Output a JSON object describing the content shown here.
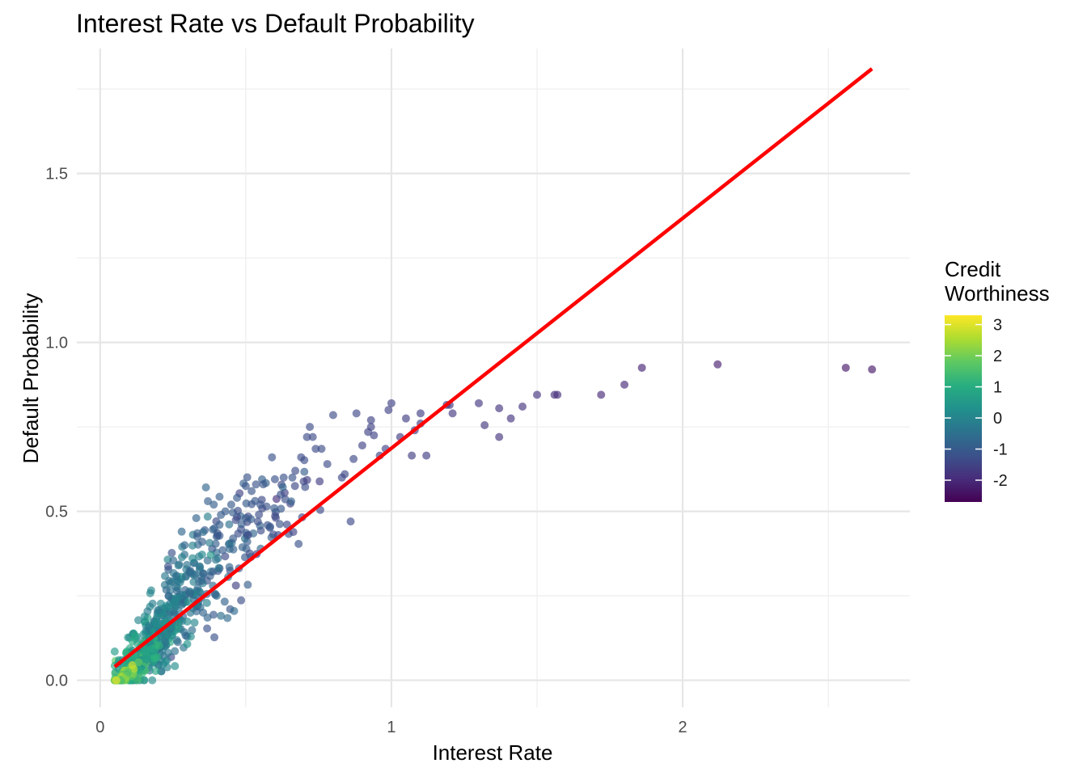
{
  "chart_data": {
    "type": "scatter",
    "title": "Interest Rate vs Default Probability",
    "xlabel": "Interest Rate",
    "ylabel": "Default Probability",
    "xlim": [
      -0.08,
      2.78
    ],
    "ylim": [
      -0.08,
      1.87
    ],
    "x_ticks": [
      0,
      1,
      2
    ],
    "x_tick_labels": [
      "0",
      "1",
      "2"
    ],
    "y_ticks": [
      0.0,
      0.5,
      1.0,
      1.5
    ],
    "y_tick_labels": [
      "0.0",
      "0.5",
      "1.0",
      "1.5"
    ],
    "grid": true,
    "legend": {
      "title_lines": [
        "Credit",
        "Worthiness"
      ],
      "placement": "right",
      "type": "colorbar",
      "range": [
        -2.7,
        3.3
      ],
      "ticks": [
        3,
        2,
        1,
        0,
        -1,
        -2
      ],
      "tick_labels": [
        "3",
        "2",
        "1",
        "0",
        "-1",
        "-2"
      ]
    },
    "colors": {
      "fit_line": "#ff0000",
      "viridis": [
        "#440154",
        "#472d7b",
        "#3b528b",
        "#2c728e",
        "#21918c",
        "#28ae80",
        "#5ec962",
        "#addc30",
        "#fde725"
      ]
    },
    "fit_line": {
      "x": [
        0.05,
        2.65
      ],
      "y": [
        0.04,
        1.81
      ]
    },
    "series": [
      {
        "points": [
          [
            2.65,
            0.92,
            -2.3
          ],
          [
            2.56,
            0.925,
            -2.3
          ],
          [
            2.12,
            0.935,
            -2.2
          ],
          [
            1.86,
            0.925,
            -2.1
          ],
          [
            1.8,
            0.875,
            -2.0
          ],
          [
            1.72,
            0.845,
            -2.0
          ],
          [
            1.57,
            0.845,
            -1.9
          ],
          [
            1.56,
            0.845,
            -1.9
          ],
          [
            1.5,
            0.845,
            -1.8
          ],
          [
            1.45,
            0.81,
            -1.8
          ],
          [
            1.41,
            0.775,
            -1.8
          ],
          [
            1.37,
            0.72,
            -1.8
          ],
          [
            1.37,
            0.805,
            -1.8
          ],
          [
            1.32,
            0.755,
            -1.7
          ],
          [
            1.3,
            0.82,
            -1.7
          ],
          [
            1.2,
            0.815,
            -1.7
          ],
          [
            1.21,
            0.79,
            -1.7
          ],
          [
            1.19,
            0.815,
            -1.7
          ],
          [
            1.12,
            0.665,
            -1.6
          ],
          [
            1.07,
            0.665,
            -1.6
          ],
          [
            1.1,
            0.76,
            -1.6
          ],
          [
            1.1,
            0.79,
            -1.6
          ],
          [
            1.08,
            0.74,
            -1.6
          ],
          [
            1.05,
            0.775,
            -1.6
          ],
          [
            1.03,
            0.72,
            -1.6
          ],
          [
            1.0,
            0.82,
            -1.5
          ],
          [
            0.99,
            0.8,
            -1.5
          ],
          [
            0.98,
            0.685,
            -1.5
          ],
          [
            0.96,
            0.665,
            -1.5
          ],
          [
            0.93,
            0.75,
            -1.5
          ],
          [
            0.93,
            0.77,
            -1.5
          ],
          [
            0.94,
            0.725,
            -1.5
          ],
          [
            0.92,
            0.735,
            -1.5
          ],
          [
            0.9,
            0.695,
            -1.5
          ],
          [
            0.88,
            0.79,
            -1.4
          ],
          [
            0.86,
            0.47,
            -1.4
          ],
          [
            0.87,
            0.655,
            -1.4
          ],
          [
            0.84,
            0.61,
            -1.4
          ],
          [
            0.83,
            0.6,
            -1.4
          ],
          [
            0.8,
            0.785,
            -1.3
          ],
          [
            0.76,
            0.685,
            -1.3
          ],
          [
            0.73,
            0.72,
            -1.3
          ],
          [
            0.74,
            0.685,
            -1.3
          ],
          [
            0.72,
            0.75,
            -1.3
          ],
          [
            0.71,
            0.72,
            -1.3
          ],
          [
            0.67,
            0.62,
            -1.3
          ],
          [
            0.69,
            0.66,
            -1.3
          ],
          [
            0.63,
            0.6,
            -1.2
          ],
          [
            0.59,
            0.66,
            -1.2
          ],
          [
            0.6,
            0.595,
            -1.2
          ],
          [
            0.56,
            0.58,
            -1.1
          ],
          [
            0.52,
            0.56,
            -1.1
          ],
          [
            0.5,
            0.575,
            -1.1
          ],
          [
            0.47,
            0.54,
            -1.0
          ],
          [
            0.43,
            0.5,
            -1.0
          ],
          [
            0.37,
            0.53,
            -0.9
          ],
          [
            0.39,
            0.52,
            -0.9
          ],
          [
            0.33,
            0.48,
            -0.8
          ],
          [
            0.29,
            0.4,
            -0.7
          ],
          [
            0.28,
            0.44,
            -0.7
          ],
          [
            0.46,
            0.205,
            -0.6
          ],
          [
            0.4,
            0.25,
            -0.6
          ],
          [
            0.31,
            0.2,
            -0.4
          ],
          [
            0.21,
            0.13,
            -0.2
          ],
          [
            0.12,
            0.13,
            0.9
          ],
          [
            0.45,
            0.52,
            -1.0
          ],
          [
            0.55,
            0.52,
            -1.1
          ],
          [
            0.62,
            0.55,
            -1.2
          ],
          [
            0.41,
            0.46,
            -0.9
          ],
          [
            0.5,
            0.48,
            -1.0
          ],
          [
            0.78,
            0.64,
            -1.3
          ],
          [
            0.66,
            0.6,
            -1.2
          ]
        ],
        "clusters": [
          {
            "n": 90,
            "cx": 0.42,
            "cy": 0.38,
            "sx": 0.09,
            "sy": 0.09,
            "cv": -0.9,
            "sv": 0.3
          },
          {
            "n": 45,
            "cx": 0.6,
            "cy": 0.5,
            "sx": 0.09,
            "sy": 0.07,
            "cv": -1.2,
            "sv": 0.2
          },
          {
            "n": 150,
            "cx": 0.28,
            "cy": 0.24,
            "sx": 0.06,
            "sy": 0.07,
            "cv": -0.4,
            "sv": 0.35
          },
          {
            "n": 190,
            "cx": 0.18,
            "cy": 0.12,
            "sx": 0.05,
            "sy": 0.05,
            "cv": 0.1,
            "sv": 0.4
          },
          {
            "n": 130,
            "cx": 0.12,
            "cy": 0.05,
            "sx": 0.035,
            "sy": 0.03,
            "cv": 0.8,
            "sv": 0.45
          },
          {
            "n": 70,
            "cx": 0.08,
            "cy": 0.01,
            "sx": 0.02,
            "sy": 0.01,
            "cv": 2.0,
            "sv": 0.5
          }
        ]
      }
    ]
  }
}
